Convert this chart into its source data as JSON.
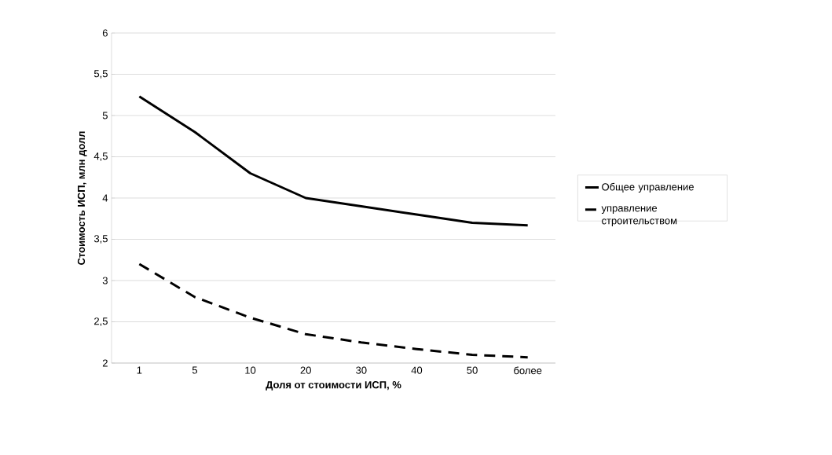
{
  "chart_data": {
    "type": "line",
    "xlabel": "Доля от стоимости ИСП, %",
    "ylabel": "Стоимость ИСП, млн долл",
    "categories": [
      "1",
      "5",
      "10",
      "20",
      "30",
      "40",
      "50",
      "более"
    ],
    "series": [
      {
        "name": "Общее управление",
        "color": "#000000",
        "line_style": "solid",
        "values": [
          5.23,
          4.8,
          4.3,
          4.0,
          3.9,
          3.8,
          3.7,
          3.67
        ]
      },
      {
        "name": "управление строительством",
        "color": "#000000",
        "line_style": "dashed",
        "values": [
          3.2,
          2.8,
          2.55,
          2.35,
          2.25,
          2.17,
          2.1,
          2.07
        ]
      }
    ],
    "ylim": [
      2,
      6
    ],
    "yticks": [
      2,
      {
        "value": 2.5,
        "label": "2,5"
      },
      3,
      {
        "value": 3.5,
        "label": "3,5"
      },
      4,
      {
        "value": 4.5,
        "label": "4,5"
      },
      5,
      {
        "value": 5.5,
        "label": "5,5"
      },
      6
    ],
    "grid": "y",
    "legend": "right"
  }
}
